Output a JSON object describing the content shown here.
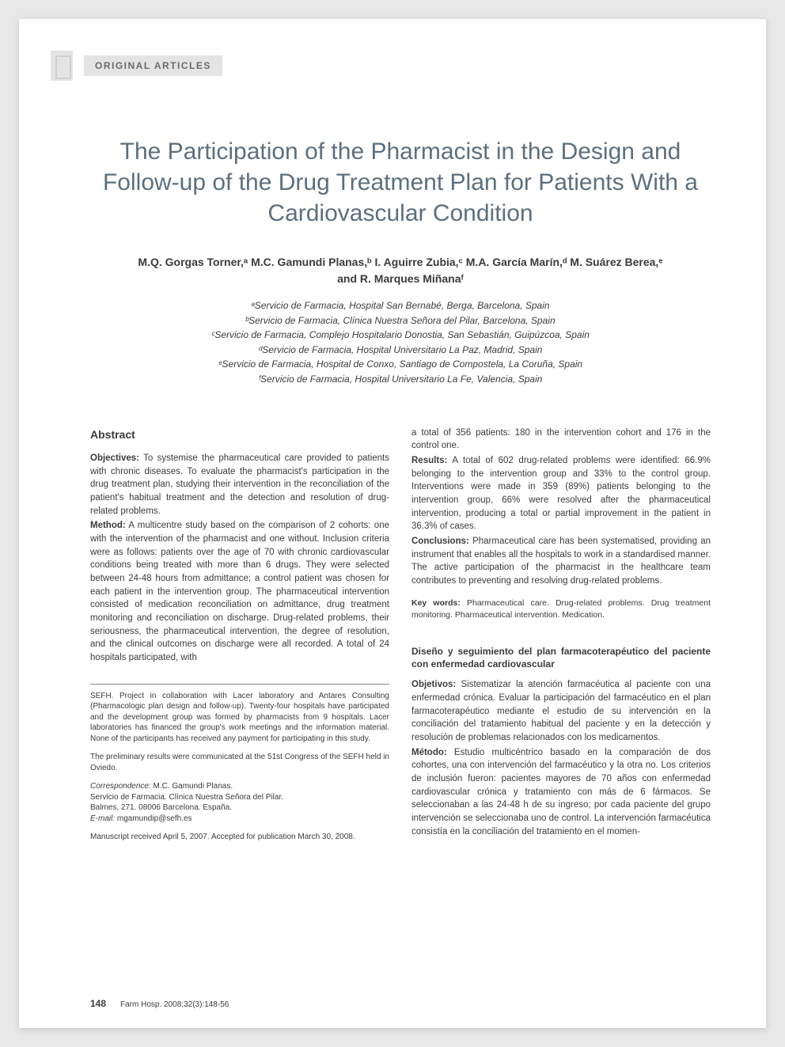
{
  "header": {
    "section_label": "ORIGINAL ARTICLES"
  },
  "title": "The Participation of the Pharmacist in the Design and Follow-up of the Drug Treatment Plan for Patients With a Cardiovascular Condition",
  "authors_line1": "M.Q. Gorgas Torner,ᵃ M.C. Gamundi Planas,ᵇ I. Aguirre Zubia,ᶜ M.A. García Marín,ᵈ M. Suárez Berea,ᵉ",
  "authors_line2": "and R. Marques Miñanaᶠ",
  "affiliations": {
    "a": "ᵃServicio de Farmacia, Hospital San Bernabé, Berga, Barcelona, Spain",
    "b": "ᵇServicio de Farmacia, Clínica Nuestra Señora del Pilar, Barcelona, Spain",
    "c": "ᶜServicio de Farmacia, Complejo Hospitalario Donostia, San Sebastián, Guipúzcoa, Spain",
    "d": "ᵈServicio de Farmacia, Hospital Universitario La Paz, Madrid, Spain",
    "e": "ᵉServicio de Farmacia, Hospital de Conxo, Santiago de Compostela, La Coruña, Spain",
    "f": "ᶠServicio de Farmacia, Hospital Universitario La Fe, Valencia, Spain"
  },
  "abstract": {
    "heading": "Abstract",
    "objectives_label": "Objectives:",
    "objectives": " To systemise the pharmaceutical care provided to patients with chronic diseases. To evaluate the pharmacist's participation in the drug treatment plan, studying their intervention in the reconciliation of the patient's habitual treatment and the detection and resolution of drug-related problems.",
    "method_label": "Method:",
    "method": " A multicentre study based on the comparison of 2 cohorts: one with the intervention of the pharmacist and one without. Inclusion criteria were as follows: patients over the age of 70 with chronic cardiovascular conditions being treated with more than 6 drugs. They were selected between 24-48 hours from admittance; a control patient was chosen for each patient in the intervention group. The pharmaceutical intervention consisted of medication reconciliation on admittance, drug treatment monitoring and reconciliation on discharge. Drug-related problems, their seriousness, the pharmaceutical intervention, the degree of resolution, and the clinical outcomes on discharge were all recorded. A total of 24 hospitals participated, with",
    "method_cont": "a total of 356 patients: 180 in the intervention cohort and 176 in the control one.",
    "results_label": "Results:",
    "results": " A total of 602 drug-related problems were identified: 66.9% belonging to the intervention group and 33% to the control group. Interventions were made in 359 (89%) patients belonging to the intervention group, 66% were resolved after the pharmaceutical intervention, producing a total or partial improvement in the patient in 36.3% of cases.",
    "conclusions_label": "Conclusions:",
    "conclusions": " Pharmaceutical care has been systematised, providing an instrument that enables all the hospitals to work in a standardised manner. The active participation of the pharmacist in the healthcare team contributes to preventing and resolving drug-related problems.",
    "keywords_label": "Key words:",
    "keywords": " Pharmaceutical care. Drug-related problems. Drug treatment monitoring. Pharmaceutical intervention. Medication."
  },
  "spanish": {
    "heading": "Diseño y seguimiento del plan farmacoterapéutico del paciente con enfermedad cardiovascular",
    "objetivos_label": "Objetivos:",
    "objetivos": " Sistematizar la atención farmacéutica al paciente con una enfermedad crónica. Evaluar la participación del farmacéutico en el plan farmacoterapéutico mediante el estudio de su intervención en la conciliación del tratamiento habitual del paciente y en la detección y resolución de problemas relacionados con los medicamentos.",
    "metodo_label": "Método:",
    "metodo": " Estudio multicéntrico basado en la comparación de dos cohortes, una con intervención del farmacéutico y la otra no. Los criterios de inclusión fueron: pacientes mayores de 70 años con enfermedad cardiovascular crónica y tratamiento con más de 6 fármacos. Se seleccionaban a las 24-48 h de su ingreso; por cada paciente del grupo intervención se seleccionaba uno de control. La intervención farmacéutica consistía en la conciliación del tratamiento en el momen-"
  },
  "footnotes": {
    "funding": "SEFH. Project in collaboration with Lacer laboratory and Antares Consulting (Pharmacologic plan design and follow-up). Twenty-four hospitals have participated and the development group was formed by pharmacists from 9 hospitals. Lacer laboratories has financed the group's work meetings and the information material. None of the participants has received any payment for participating in this study.",
    "prelim": "The preliminary results were communicated at the 51st Congress of the SEFH held in Oviedo.",
    "corr_label": "Correspondence:",
    "corr_name": " M.C. Gamundi Planas.",
    "corr_addr1": "Servicio de Farmacia. Clínica Nuestra Señora del Pilar.",
    "corr_addr2": "Balmes, 271. 08006 Barcelona. España.",
    "email_label": "E-mail:",
    "email": " mgamundip@sefh.es",
    "received": "Manuscript received April 5, 2007.    Accepted for publication March 30, 2008."
  },
  "footer": {
    "page_number": "148",
    "citation": "Farm Hosp. 2008;32(3):148-56"
  },
  "colors": {
    "page_bg": "#ffffff",
    "outer_bg": "#e8e8e8",
    "title_color": "#5d6f7d",
    "label_bg": "#e4e4e4",
    "label_text": "#6b6b6b",
    "body_text": "#3b3b3b"
  }
}
